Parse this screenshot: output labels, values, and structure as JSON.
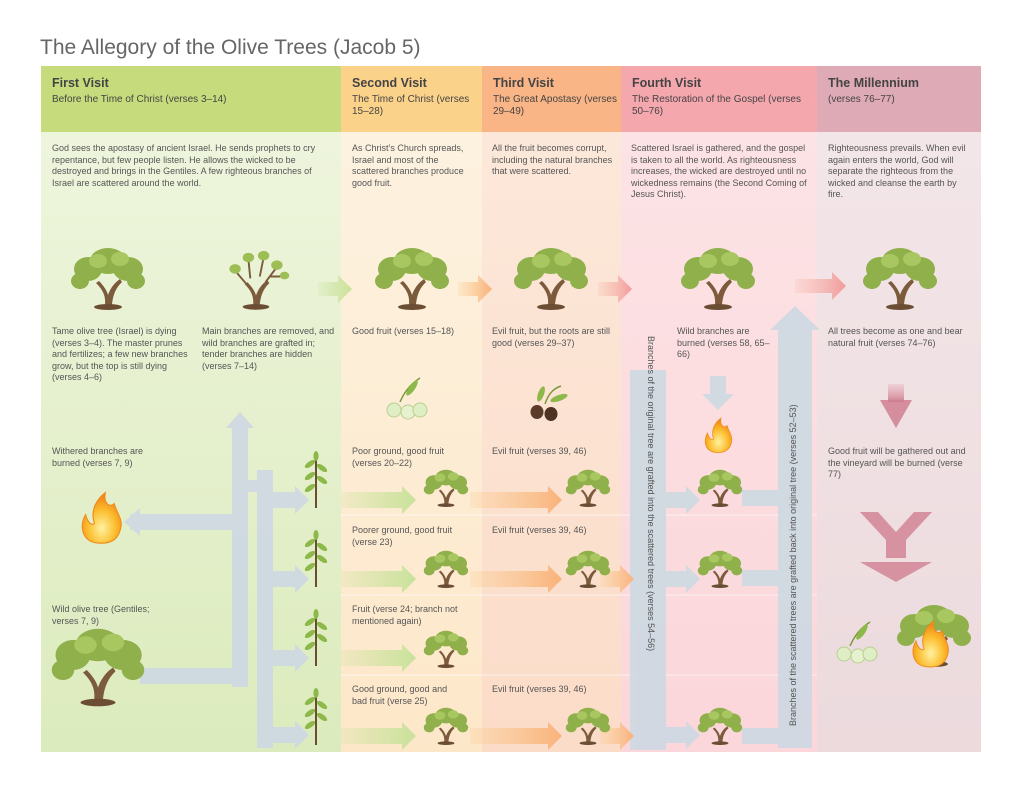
{
  "title": "The Allegory of the Olive Trees (Jacob 5)",
  "columns": [
    {
      "title": "First Visit",
      "subtitle": "Before the Time of Christ (verses 3–14)",
      "color": "#c6dc7c",
      "body_color": "#eaf3d7"
    },
    {
      "title": "Second Visit",
      "subtitle": "The Time of Christ (verses 15–28)",
      "color": "#fbd28a",
      "body_color": "#fdf0dc"
    },
    {
      "title": "Third Visit",
      "subtitle": "The Great Apostasy (verses 29–49)",
      "color": "#f9b586",
      "body_color": "#fbe3d2"
    },
    {
      "title": "Fourth Visit",
      "subtitle": "The Restoration of the Gospel (verses 50–76)",
      "color": "#f5a7ae",
      "body_color": "#fadbde"
    },
    {
      "title": "The Millennium",
      "subtitle": "(verses 76–77)",
      "color": "#deaab6",
      "body_color": "#f1e0e3"
    }
  ],
  "intro": {
    "first": "God sees the apostasy of ancient Israel. He sends prophets to cry repentance, but few people listen. He allows the wicked to be destroyed and brings in the Gentiles. A few righteous branches of Israel are scattered around the world.",
    "second": "As Christ’s Church spreads, Israel and most of the scattered branches produce good fruit.",
    "third": "All the fruit becomes corrupt, including the natural branches that were scattered.",
    "fourth": "Scattered Israel is gathered, and the gospel is taken to all the world. As righteousness increases, the wicked are destroyed until no wickedness remains (the Second Coming of Jesus Christ).",
    "millennium": "Righteousness prevails. When evil again enters the world, God will separate the righteous from the wicked and cleanse the earth by fire."
  },
  "labels": {
    "tame_tree": "Tame olive tree (Israel) is dying (verses 3–4). The master prunes and fertilizes; a few new branches grow, but the top is still dying (verses 4–6)",
    "main_removed": "Main branches are removed, and wild branches are grafted in; tender branches are hidden (verses 7–14)",
    "withered": "Withered branches are burned (verses 7, 9)",
    "wild_tree": "Wild olive tree (Gentiles; verses 7, 9)",
    "good_fruit": "Good fruit (verses 15–18)",
    "poor_ground": "Poor ground, good fruit (verses 20–22)",
    "poorer_ground": "Poorer ground, good fruit (verse 23)",
    "fruit_24": "Fruit (verse 24; branch not mentioned again)",
    "good_bad_ground": "Good ground, good and bad fruit (verse 25)",
    "evil_fruit_roots": "Evil fruit, but the roots are still good (verses 29–37)",
    "evil_fruit_1": "Evil fruit (verses 39, 46)",
    "evil_fruit_2": "Evil fruit (verses 39, 46)",
    "evil_fruit_3": "Evil fruit (verses 39, 46)",
    "wild_burned": "Wild branches are burned (verses 58, 65–66)",
    "trees_one": "All trees become as one and bear natural fruit (verses 74–76)",
    "gathered_out": "Good fruit will be gathered out and the vineyard will be burned (verse 77)",
    "grafted_into_scattered": "Branches of the original tree are grafted into the scattered trees (verses 54–56)",
    "grafted_back": "Branches of the scattered trees are grafted back into original tree (verses 52–53)"
  },
  "icons": [
    "olive-tree-icon",
    "sapling-icon",
    "flame-icon",
    "olive-fruit-icon",
    "arrow-icon"
  ]
}
